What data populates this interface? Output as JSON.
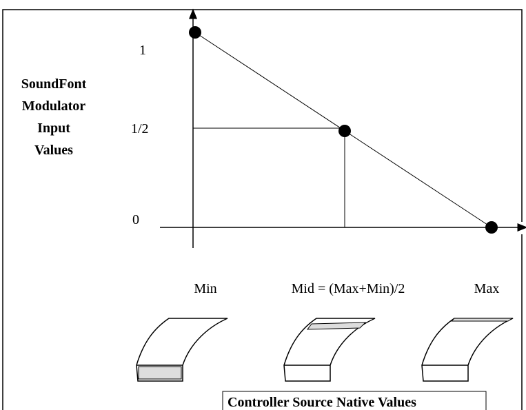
{
  "y_axis_title": [
    "SoundFont",
    "Modulator",
    "Input",
    "Values"
  ],
  "y_labels": [
    "1",
    "1/2",
    "0"
  ],
  "x_labels": [
    "Min",
    "Mid = (Max+Min)/2",
    "Max"
  ],
  "caption": "Controller Source Native Values"
}
